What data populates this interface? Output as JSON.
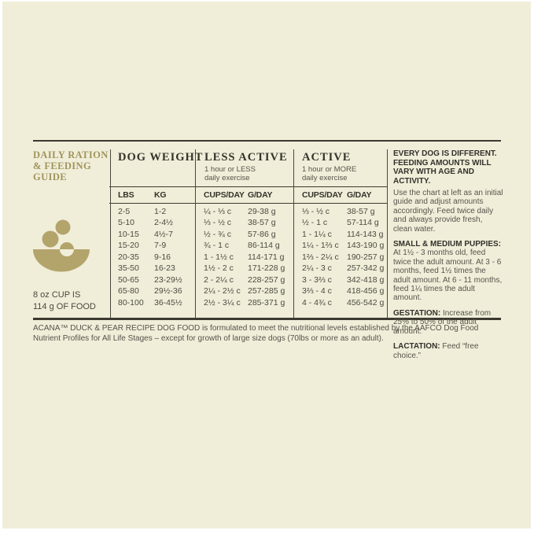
{
  "colors": {
    "background": "#f0eed9",
    "accent_tan": "#b3a46c",
    "title_tan": "#a1945c",
    "text_dark": "#35332b",
    "text_gray": "#57544b",
    "rule_dark": "#3b3930"
  },
  "icons": {
    "cup": "dog-food-bowl-with-kibble-icon"
  },
  "guide": {
    "title": "DAILY RATION\n& FEEDING\nGUIDE",
    "cup_note": "8 oz CUP IS\n114 g OF FOOD"
  },
  "table": {
    "sections": {
      "dog_weight": {
        "title": "DOG WEIGHT"
      },
      "less_active": {
        "title": "LESS ACTIVE",
        "subtitle": "1 hour or LESS\ndaily exercise"
      },
      "active": {
        "title": "ACTIVE",
        "subtitle": "1 hour or MORE\ndaily exercise"
      }
    },
    "columns": [
      {
        "key": "lbs",
        "header": "LBS"
      },
      {
        "key": "kg",
        "header": "KG"
      },
      {
        "key": "cups_day_less",
        "header": "CUPS/DAY"
      },
      {
        "key": "g_day_less",
        "header": "G/DAY"
      },
      {
        "key": "cups_day_active",
        "header": "CUPS/DAY"
      },
      {
        "key": "g_day_active",
        "header": "G/DAY"
      }
    ],
    "rows": [
      [
        "2-5",
        "1-2",
        "¼ - ⅓ c",
        "29-38 g",
        "⅓ - ½ c",
        "38-57 g"
      ],
      [
        "5-10",
        "2-4½",
        "⅓ - ½ c",
        "38-57 g",
        "½ - 1 c",
        "57-114 g"
      ],
      [
        "10-15",
        "4½-7",
        "½ - ¾ c",
        "57-86 g",
        "1 - 1¼ c",
        "114-143 g"
      ],
      [
        "15-20",
        "7-9",
        "¾ - 1 c",
        "86-114 g",
        "1¼ - 1⅔ c",
        "143-190 g"
      ],
      [
        "20-35",
        "9-16",
        "1 - 1½ c",
        "114-171 g",
        "1⅔ - 2¼ c",
        "190-257 g"
      ],
      [
        "35-50",
        "16-23",
        "1½ - 2 c",
        "171-228 g",
        "2¼ - 3 c",
        "257-342 g"
      ],
      [
        "50-65",
        "23-29½",
        "2 - 2¼ c",
        "228-257 g",
        "3 - 3⅔ c",
        "342-418 g"
      ],
      [
        "65-80",
        "29½-36",
        "2¼ - 2½ c",
        "257-285 g",
        "3⅔ - 4 c",
        "418-456 g"
      ],
      [
        "80-100",
        "36-45½",
        "2½ - 3¼ c",
        "285-371 g",
        "4 - 4¾ c",
        "456-542 g"
      ]
    ]
  },
  "advice": {
    "heading": "EVERY DOG IS DIFFERENT. FEEDING AMOUNTS WILL VARY WITH AGE AND ACTIVITY.",
    "intro": "Use the chart at left as an initial guide and adjust amounts accordingly. Feed twice daily and always provide fresh, clean water.",
    "puppies_label": "SMALL & MEDIUM PUPPIES:",
    "puppies_text": "At 1½ - 3 months old, feed twice the adult amount. At 3 - 6 months, feed 1½ times the adult amount. At 6 - 11 months, feed 1¼ times the adult amount.",
    "gestation_label": "GESTATION:",
    "gestation_text": "Increase from 25% to 50% of the adult amount.",
    "lactation_label": "LACTATION:",
    "lactation_text": "Feed “free choice.”"
  },
  "footnote": "ACANA™ DUCK & PEAR RECIPE DOG FOOD is formulated to meet the nutritional levels established by the AAFCO Dog Food Nutrient Profiles for All Life Stages – except for growth of large size dogs (70lbs or more as an adult)."
}
